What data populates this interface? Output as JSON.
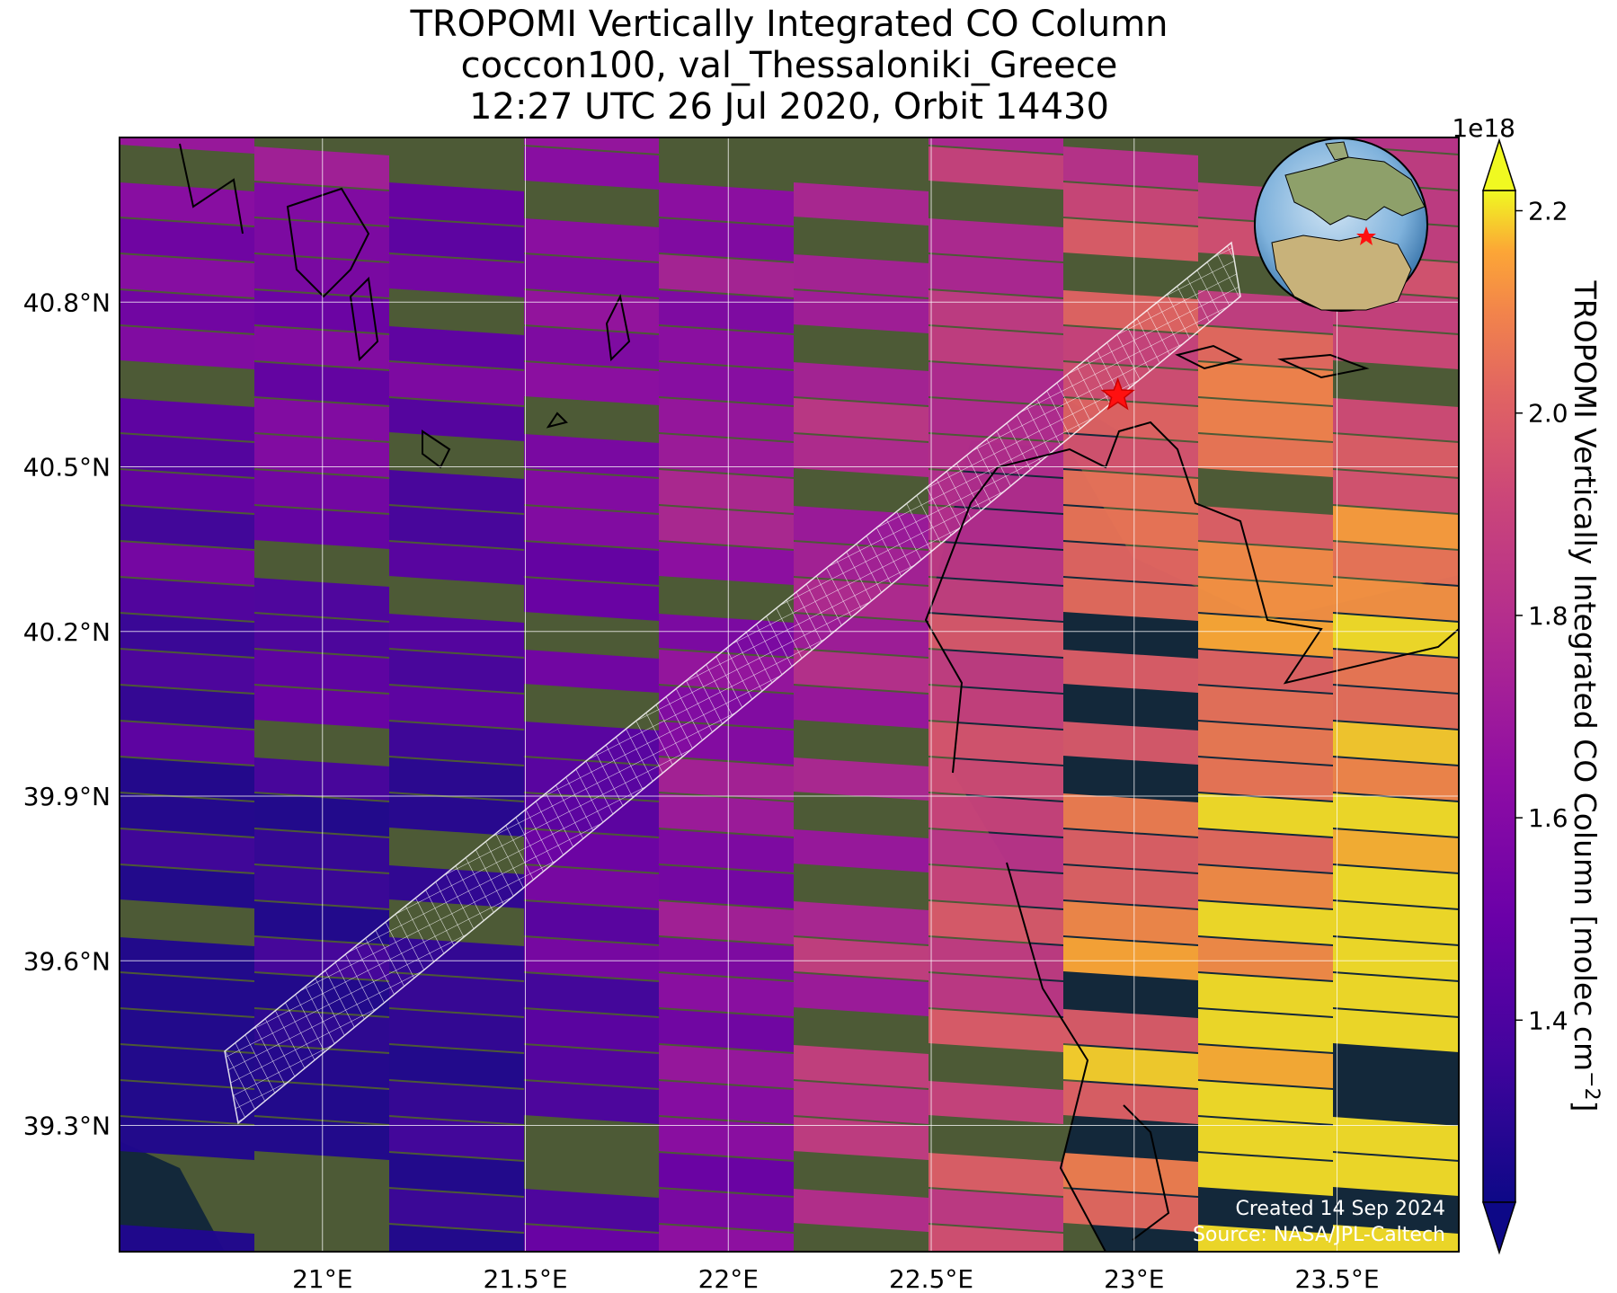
{
  "title": {
    "line1": "TROPOMI Vertically Integrated CO Column",
    "line2": "coccon100, val_Thessaloniki_Greece",
    "line3": "12:27 UTC 26 Jul 2020, Orbit 14430"
  },
  "credits": {
    "created": "Created 14 Sep 2024",
    "source": "Source: NASA/JPL-Caltech"
  },
  "map": {
    "lon_range": [
      20.5,
      23.8
    ],
    "lat_range": [
      39.07,
      41.1
    ],
    "lon_ticks": [
      {
        "value": 21.0,
        "label": "21°E"
      },
      {
        "value": 21.5,
        "label": "21.5°E"
      },
      {
        "value": 22.0,
        "label": "22°E"
      },
      {
        "value": 22.5,
        "label": "22.5°E"
      },
      {
        "value": 23.0,
        "label": "23°E"
      },
      {
        "value": 23.5,
        "label": "23.5°E"
      }
    ],
    "lat_ticks": [
      {
        "value": 39.3,
        "label": "39.3°N"
      },
      {
        "value": 39.6,
        "label": "39.6°N"
      },
      {
        "value": 39.9,
        "label": "39.9°N"
      },
      {
        "value": 40.2,
        "label": "40.2°N"
      },
      {
        "value": 40.5,
        "label": "40.5°N"
      },
      {
        "value": 40.8,
        "label": "40.8°N"
      }
    ],
    "grid": true,
    "site": {
      "lon": 22.96,
      "lat": 40.63,
      "marker": "red-star"
    },
    "inset": "globe-locator",
    "sea_color": "#13283a",
    "land_color": "#4d5a36"
  },
  "colorbar": {
    "label": "TROPOMI Vertically Integrated CO Column [molec cm",
    "label_sup": "−2",
    "label_end": "]",
    "scale": "1e18",
    "min": 1.22,
    "max": 2.22,
    "ticks": [
      {
        "value": 1.4,
        "label": "1.4"
      },
      {
        "value": 1.6,
        "label": "1.6"
      },
      {
        "value": 1.8,
        "label": "1.8"
      },
      {
        "value": 2.0,
        "label": "2.0"
      },
      {
        "value": 2.2,
        "label": "2.2"
      }
    ],
    "colormap": "plasma",
    "extend": "both"
  }
}
